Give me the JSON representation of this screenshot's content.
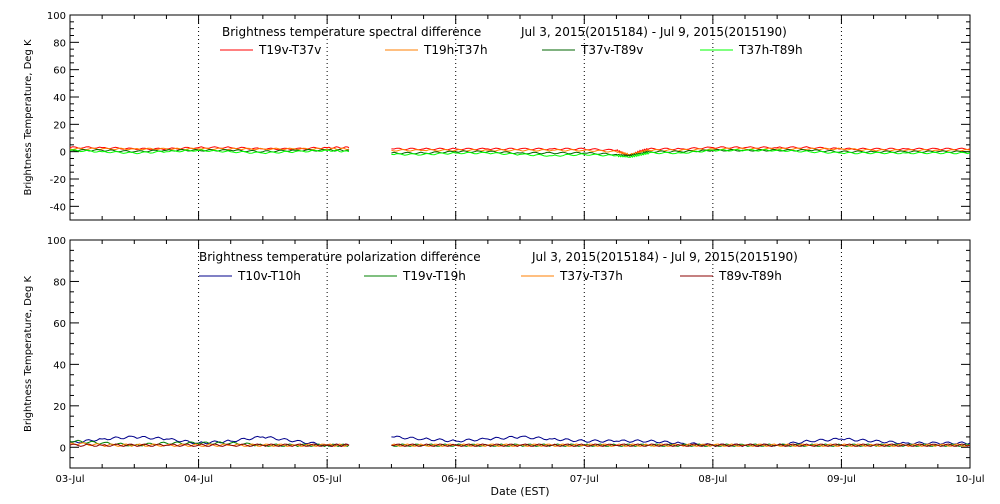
{
  "chart_data": [
    {
      "type": "line",
      "title": "Brightness temperature spectral difference",
      "date_range": "Jul  3, 2015(2015184) - Jul  9, 2015(2015190)",
      "ylabel": "Brightness Temperature, Deg K",
      "xlabel": "",
      "ylim": [
        -50,
        100
      ],
      "yticks": [
        -40,
        -20,
        0,
        20,
        40,
        60,
        80,
        100
      ],
      "xlim": [
        0,
        7
      ],
      "xticks": [
        "",
        "",
        "",
        "",
        "",
        "",
        "",
        ""
      ],
      "grid": "vertical-dotted",
      "legend_position": "top",
      "data_gap": [
        2.17,
        2.33
      ],
      "series": [
        {
          "name": "T19v-T37v",
          "color": "#ff0000",
          "x": [
            0,
            0.25,
            0.5,
            0.75,
            1.0,
            1.25,
            1.5,
            1.75,
            2.0,
            2.17,
            2.33,
            2.5,
            2.75,
            3.0,
            3.25,
            3.5,
            3.75,
            4.0,
            4.25,
            4.35,
            4.45,
            4.5,
            4.75,
            5.0,
            5.25,
            5.5,
            5.75,
            6.0,
            6.25,
            6.5,
            6.75,
            7.0
          ],
          "values": [
            3,
            3,
            2,
            2,
            3,
            3,
            2,
            2,
            3,
            3,
            null,
            2,
            2,
            2,
            2,
            2,
            2,
            2,
            1,
            -3,
            1,
            2,
            2,
            3,
            3,
            3,
            3,
            2,
            2,
            2,
            2,
            2
          ]
        },
        {
          "name": "T19h-T37h",
          "color": "#ff7f00",
          "x": [
            0,
            0.25,
            0.5,
            0.75,
            1.0,
            1.25,
            1.5,
            1.75,
            2.0,
            2.17,
            2.33,
            2.5,
            2.75,
            3.0,
            3.25,
            3.5,
            3.75,
            4.0,
            4.25,
            4.35,
            4.45,
            4.5,
            4.75,
            5.0,
            5.25,
            5.5,
            5.75,
            6.0,
            6.25,
            6.5,
            6.75,
            7.0
          ],
          "values": [
            2,
            2,
            2,
            2,
            2,
            2,
            2,
            2,
            2,
            2,
            null,
            1,
            1,
            1,
            1,
            1,
            1,
            1,
            0,
            -2,
            0,
            1,
            1,
            2,
            2,
            2,
            2,
            2,
            1,
            1,
            1,
            1
          ]
        },
        {
          "name": "T37v-T89v",
          "color": "#006400",
          "x": [
            0,
            0.25,
            0.5,
            0.75,
            1.0,
            1.25,
            1.5,
            1.75,
            2.0,
            2.17,
            2.33,
            2.5,
            2.75,
            3.0,
            3.25,
            3.5,
            3.75,
            4.0,
            4.25,
            4.35,
            4.45,
            4.5,
            4.75,
            5.0,
            5.25,
            5.5,
            5.75,
            6.0,
            6.25,
            6.5,
            6.75,
            7.0
          ],
          "values": [
            1,
            1,
            0,
            1,
            1,
            1,
            0,
            1,
            1,
            1,
            null,
            -1,
            -1,
            0,
            0,
            -1,
            -1,
            -1,
            -2,
            -3,
            -1,
            0,
            0,
            1,
            1,
            1,
            1,
            0,
            0,
            0,
            0,
            0
          ]
        },
        {
          "name": "T37h-T89h",
          "color": "#00ff00",
          "x": [
            0,
            0.25,
            0.5,
            0.75,
            1.0,
            1.25,
            1.5,
            1.75,
            2.0,
            2.17,
            2.33,
            2.5,
            2.75,
            3.0,
            3.25,
            3.5,
            3.75,
            4.0,
            4.25,
            4.35,
            4.45,
            4.5,
            4.75,
            5.0,
            5.25,
            5.5,
            5.75,
            6.0,
            6.25,
            6.5,
            6.75,
            7.0
          ],
          "values": [
            1,
            0,
            -1,
            0,
            1,
            0,
            -1,
            0,
            1,
            0,
            null,
            -2,
            -2,
            -1,
            -1,
            -2,
            -3,
            -2,
            -3,
            -4,
            -2,
            -1,
            -1,
            1,
            1,
            1,
            0,
            -1,
            -1,
            -1,
            -1,
            -1
          ]
        }
      ]
    },
    {
      "type": "line",
      "title": "Brightness temperature polarization difference",
      "date_range": "Jul  3, 2015(2015184) - Jul  9, 2015(2015190)",
      "ylabel": "Brightness Temperature, Deg K",
      "xlabel": "Date (EST)",
      "ylim": [
        -10,
        100
      ],
      "yticks": [
        0,
        20,
        40,
        60,
        80,
        100
      ],
      "xlim": [
        0,
        7
      ],
      "xticks": [
        "03-Jul",
        "04-Jul",
        "05-Jul",
        "06-Jul",
        "07-Jul",
        "08-Jul",
        "09-Jul",
        "10-Jul"
      ],
      "grid": "vertical-dotted",
      "legend_position": "top",
      "data_gap": [
        2.17,
        2.33
      ],
      "series": [
        {
          "name": "T10v-T10h",
          "color": "#00008b",
          "x": [
            0,
            0.25,
            0.5,
            0.75,
            1.0,
            1.25,
            1.5,
            1.75,
            2.0,
            2.17,
            2.33,
            2.5,
            2.75,
            3.0,
            3.25,
            3.5,
            3.75,
            4.0,
            4.25,
            4.5,
            4.75,
            5.0,
            5.25,
            5.5,
            5.75,
            6.0,
            6.25,
            6.5,
            6.75,
            7.0
          ],
          "values": [
            2,
            4,
            5,
            4,
            2,
            3,
            5,
            3,
            1,
            1,
            null,
            5,
            4,
            3,
            4,
            5,
            4,
            3,
            3,
            3,
            2,
            1,
            1,
            1,
            3,
            4,
            3,
            2,
            2,
            2
          ]
        },
        {
          "name": "T19v-T19h",
          "color": "#008000",
          "x": [
            0,
            0.25,
            0.5,
            0.75,
            1.0,
            1.25,
            1.5,
            1.75,
            2.0,
            2.17,
            2.33,
            2.5,
            2.75,
            3.0,
            3.25,
            3.5,
            3.75,
            4.0,
            4.25,
            4.5,
            4.75,
            5.0,
            5.25,
            5.5,
            5.75,
            6.0,
            6.25,
            6.5,
            6.75,
            7.0
          ],
          "values": [
            3,
            2,
            1,
            2,
            2,
            2,
            1,
            1,
            1,
            1,
            null,
            1,
            1,
            1,
            1,
            1,
            1,
            1,
            1,
            1,
            1,
            1,
            1,
            1,
            1,
            1,
            1,
            1,
            1,
            1
          ]
        },
        {
          "name": "T37v-T37h",
          "color": "#ff7f00",
          "x": [
            0,
            0.25,
            0.5,
            0.75,
            1.0,
            1.25,
            1.5,
            1.75,
            2.0,
            2.17,
            2.33,
            2.5,
            2.75,
            3.0,
            3.25,
            3.5,
            3.75,
            4.0,
            4.25,
            4.5,
            4.75,
            5.0,
            5.25,
            5.5,
            5.75,
            6.0,
            6.25,
            6.5,
            6.75,
            7.0
          ],
          "values": [
            2,
            1,
            1,
            1,
            1,
            1,
            1,
            1,
            1,
            1,
            null,
            1,
            1,
            1,
            1,
            1,
            1,
            1,
            1,
            1,
            1,
            1,
            1,
            1,
            1,
            1,
            1,
            1,
            1,
            1
          ]
        },
        {
          "name": "T89v-T89h",
          "color": "#8b0000",
          "x": [
            0,
            0.25,
            0.5,
            0.75,
            1.0,
            1.25,
            1.5,
            1.75,
            2.0,
            2.17,
            2.33,
            2.5,
            2.75,
            3.0,
            3.25,
            3.5,
            3.75,
            4.0,
            4.25,
            4.5,
            4.75,
            5.0,
            5.25,
            5.5,
            5.75,
            6.0,
            6.25,
            6.5,
            6.75,
            7.0
          ],
          "values": [
            1,
            1,
            1,
            1,
            1,
            1,
            1,
            1,
            1,
            1,
            null,
            1,
            1,
            1,
            1,
            1,
            1,
            1,
            1,
            1,
            1,
            1,
            1,
            1,
            1,
            1,
            1,
            1,
            1,
            1
          ]
        }
      ]
    }
  ]
}
